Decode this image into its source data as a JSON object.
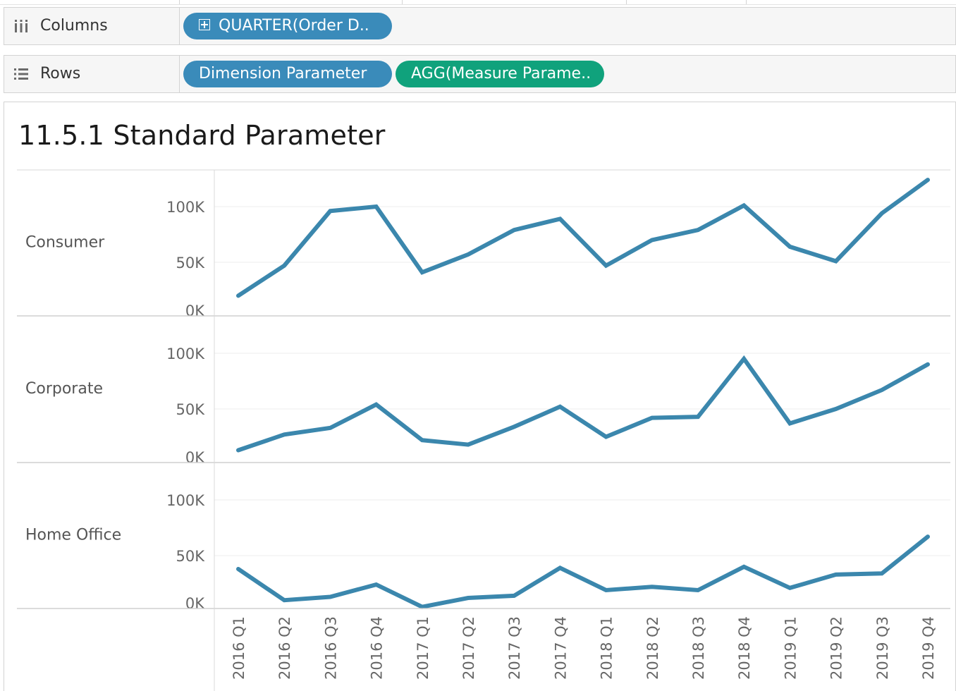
{
  "shelves": {
    "columns": {
      "label": "Columns",
      "pills": [
        {
          "text": "QUARTER(Order D..",
          "color": "#3a8bba"
        }
      ]
    },
    "rows": {
      "label": "Rows",
      "pills": [
        {
          "text": "Dimension Parameter",
          "color": "#3a8bba"
        },
        {
          "text": "AGG(Measure Parame..",
          "color": "#10a27c"
        }
      ]
    }
  },
  "sheet": {
    "title": "11.5.1 Standard Parameter"
  },
  "chart_data": {
    "type": "line",
    "line_color": "#3b87ad",
    "x": [
      "2016 Q1",
      "2016 Q2",
      "2016 Q3",
      "2016 Q4",
      "2017 Q1",
      "2017 Q2",
      "2017 Q3",
      "2017 Q4",
      "2018 Q1",
      "2018 Q2",
      "2018 Q3",
      "2018 Q4",
      "2019 Q1",
      "2019 Q2",
      "2019 Q3",
      "2019 Q4"
    ],
    "ylim": [
      0,
      115000
    ],
    "yticks": [
      0,
      50000,
      100000
    ],
    "ytick_labels": [
      "0K",
      "50K",
      "100K"
    ],
    "panels": [
      {
        "name": "Consumer",
        "values": [
          20000,
          47000,
          96000,
          100000,
          41000,
          57000,
          79000,
          89000,
          47000,
          70000,
          79000,
          101000,
          64000,
          51000,
          94000,
          124000
        ]
      },
      {
        "name": "Corporate",
        "values": [
          13000,
          27000,
          33000,
          54000,
          22000,
          18000,
          34000,
          52000,
          25000,
          42000,
          43000,
          95000,
          37000,
          50000,
          67000,
          90000
        ]
      },
      {
        "name": "Home Office",
        "values": [
          38000,
          10000,
          13000,
          24000,
          4000,
          12000,
          14000,
          39000,
          19000,
          22000,
          19000,
          40000,
          21000,
          33000,
          34000,
          67000
        ]
      }
    ]
  }
}
